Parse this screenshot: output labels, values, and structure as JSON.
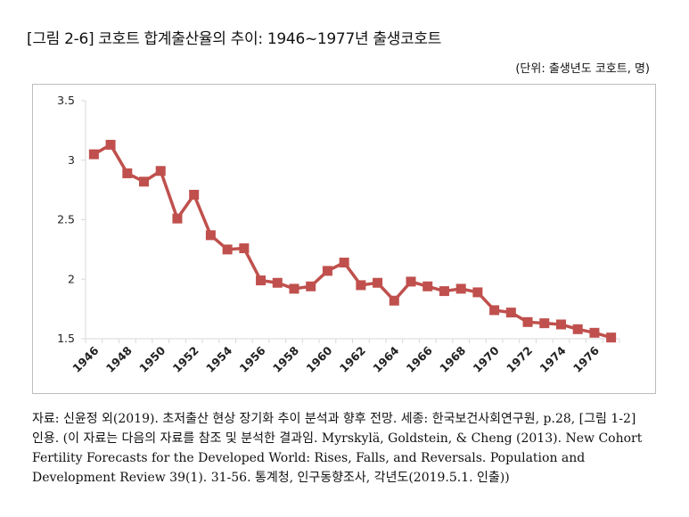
{
  "figure": {
    "title": "[그림 2-6] 코호트 합계출산율의 추이: 1946~1977년 출생코호트",
    "unit_note": "(단위: 출생년도 코호트, 명)",
    "source_label": "자료:",
    "source_text": "신윤정 외(2019). 초저출산 현상 장기화 추이 분석과 향후 전망. 세종: 한국보건사회연구원, p.28, [그림 1-2] 인용. (이 자료는 다음의 자료를 참조 및 분석한 결과임. Myrskylä, Goldstein, & Cheng (2013). New Cohort Fertility Forecasts for the Developed World: Rises, Falls, and Reversals. Population and Development Review 39(1). 31-56. 통계청, 인구동향조사, 각년도(2019.5.1. 인출))"
  },
  "chart_data": {
    "type": "line",
    "title": "",
    "xlabel": "",
    "ylabel": "",
    "x": [
      1946,
      1947,
      1948,
      1949,
      1950,
      1951,
      1952,
      1953,
      1954,
      1955,
      1956,
      1957,
      1958,
      1959,
      1960,
      1961,
      1962,
      1963,
      1964,
      1965,
      1966,
      1967,
      1968,
      1969,
      1970,
      1971,
      1972,
      1973,
      1974,
      1975,
      1976,
      1977
    ],
    "x_tick_labels": [
      "1946",
      "1948",
      "1950",
      "1952",
      "1954",
      "1956",
      "1958",
      "1960",
      "1962",
      "1964",
      "1966",
      "1968",
      "1970",
      "1972",
      "1974",
      "1976"
    ],
    "series": [
      {
        "values": [
          3.05,
          3.13,
          2.89,
          2.82,
          2.91,
          2.51,
          2.71,
          2.37,
          2.25,
          2.26,
          1.99,
          1.97,
          1.92,
          1.94,
          2.07,
          2.14,
          1.95,
          1.97,
          1.82,
          1.98,
          1.94,
          1.9,
          1.92,
          1.89,
          1.74,
          1.72,
          1.64,
          1.63,
          1.62,
          1.58,
          1.55,
          1.51
        ],
        "color": "#c0504d"
      }
    ],
    "y_ticks": [
      1.5,
      2,
      2.5,
      3,
      3.5
    ],
    "y_tick_labels": [
      "1.5",
      "2",
      "2.5",
      "3",
      "3.5"
    ],
    "ylim": [
      1.5,
      3.5
    ],
    "grid": false,
    "legend": "none",
    "colors": {
      "line": "#c0504d",
      "marker": "#c0504d",
      "axis": "#d9d9d9",
      "frame": "#bdbdbd"
    }
  }
}
